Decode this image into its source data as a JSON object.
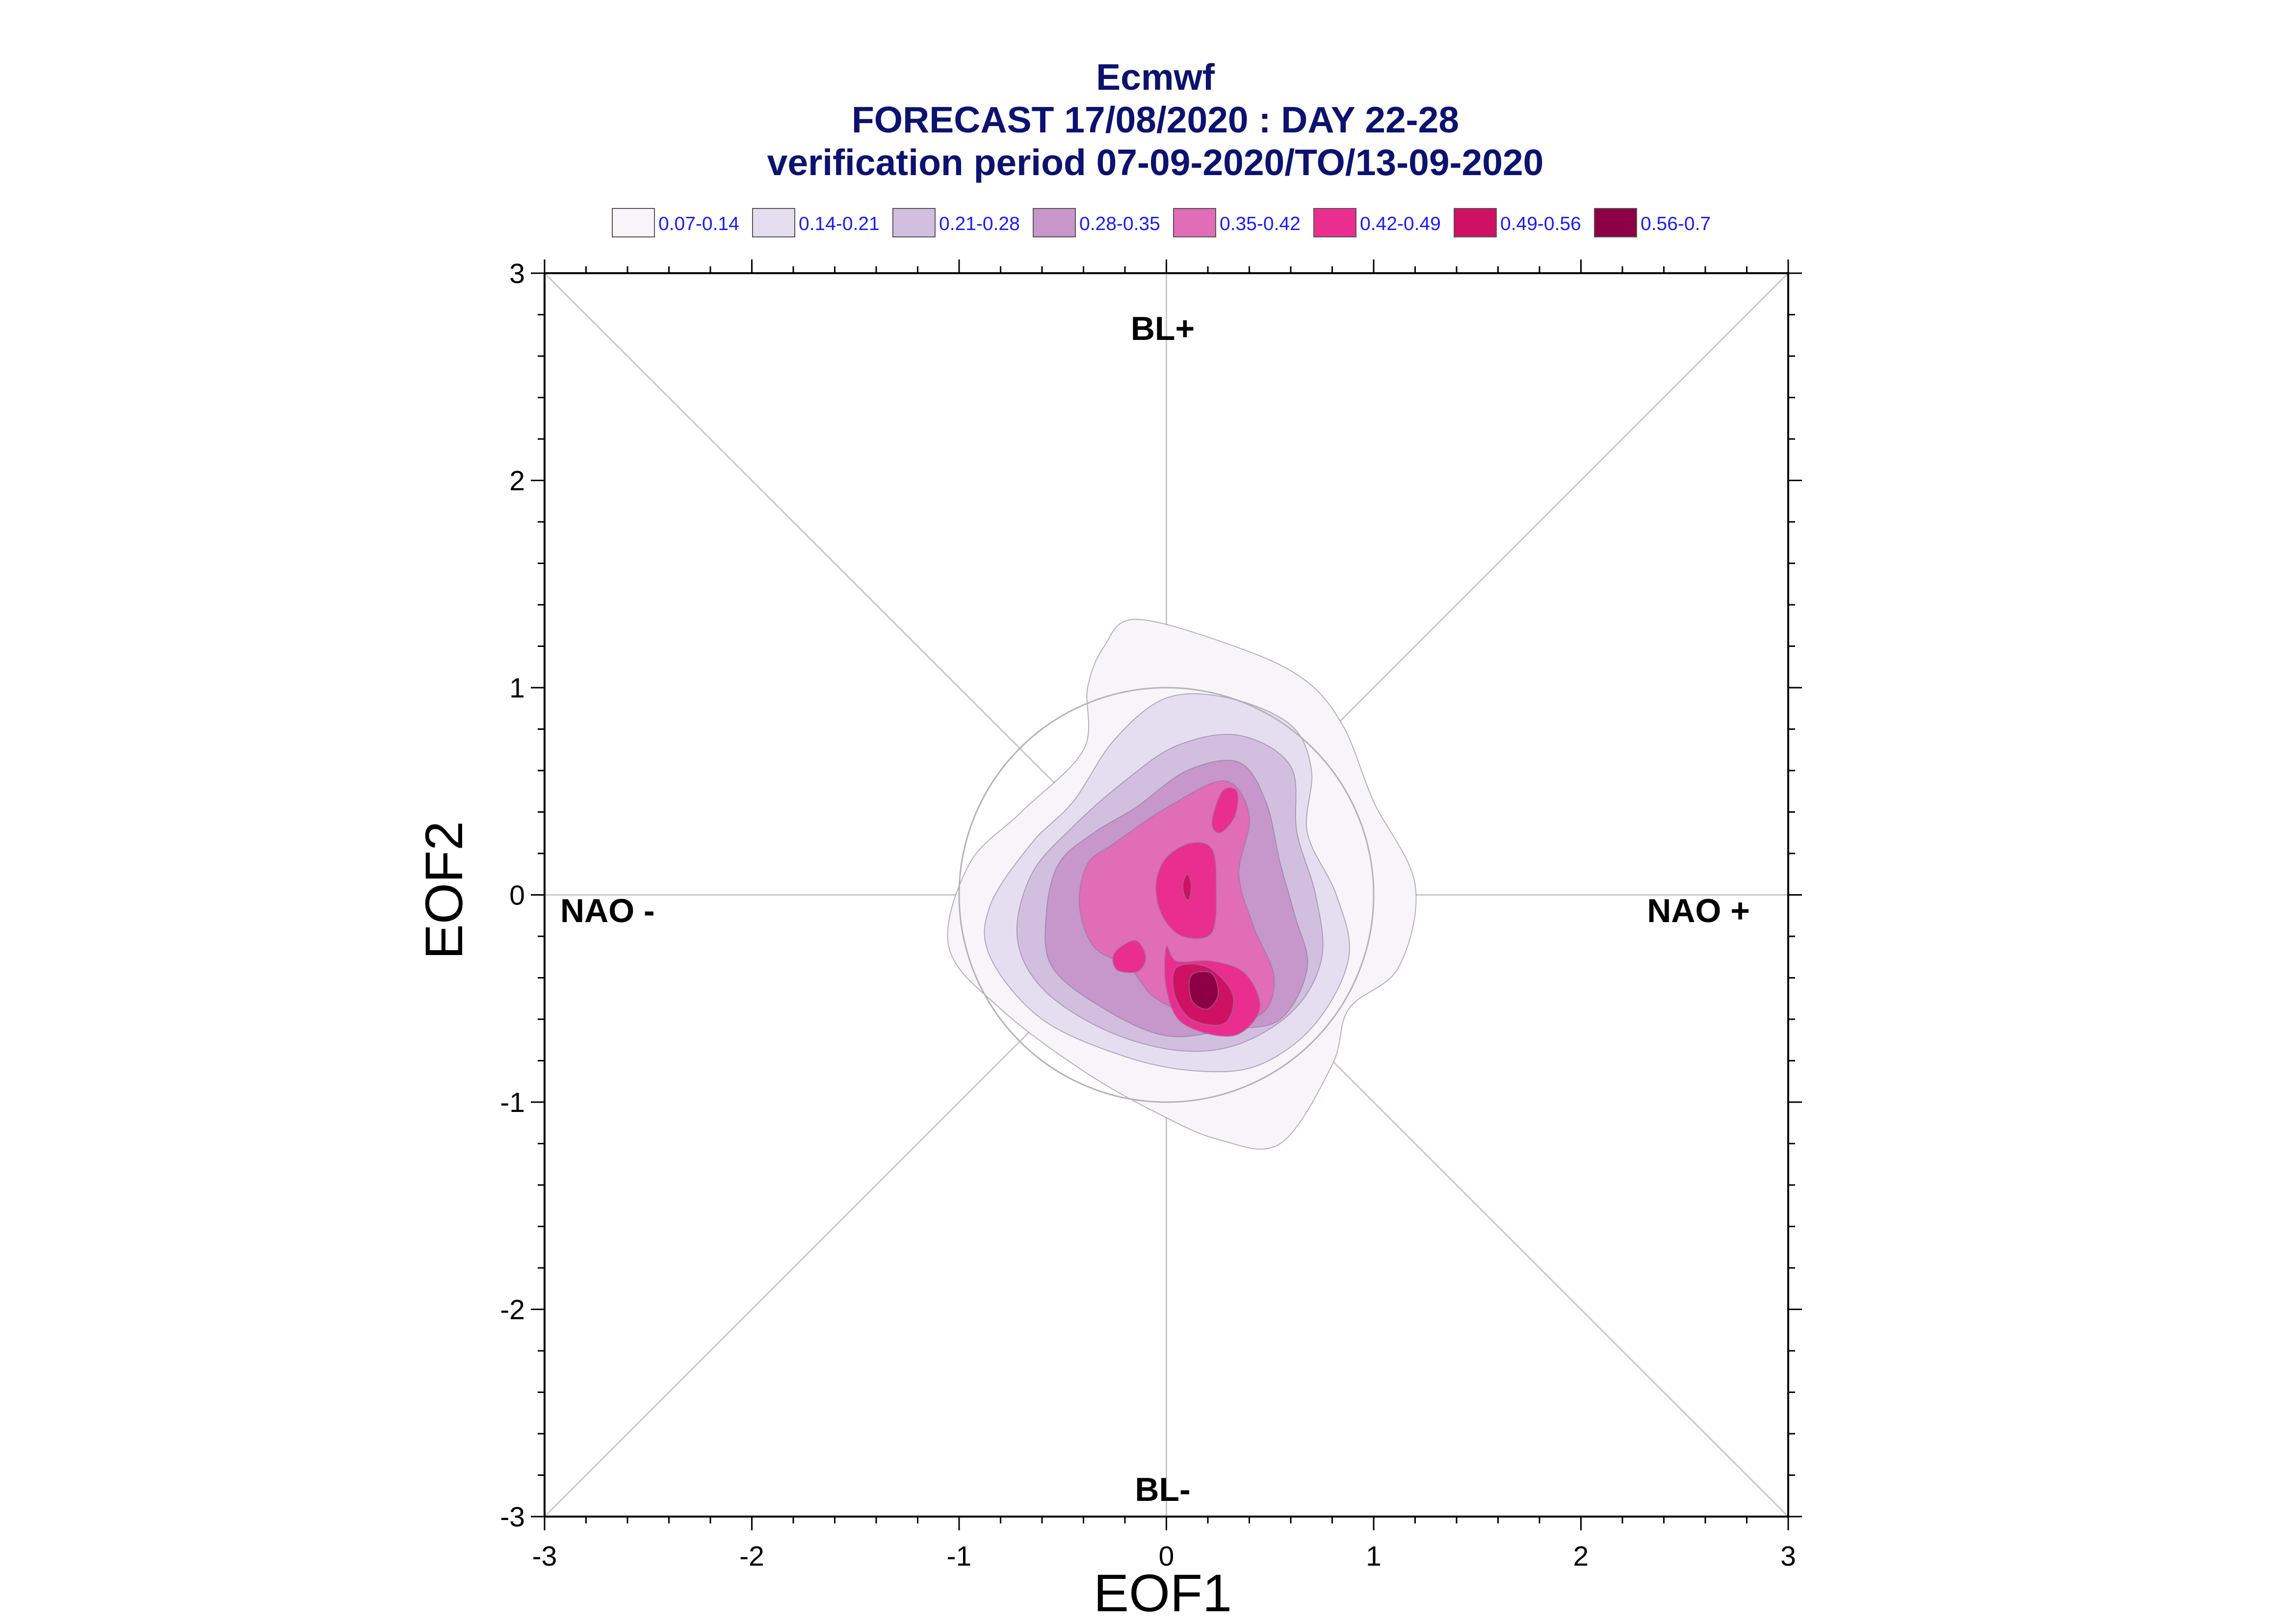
{
  "title_lines": [
    "Ecmwf",
    "FORECAST 17/08/2020 : DAY 22-28",
    "verification period 07-09-2020/TO/13-09-2020"
  ],
  "legend": [
    {
      "label": "0.07-0.14",
      "color": "#f7f5fa"
    },
    {
      "label": "0.14-0.21",
      "color": "#e5def0"
    },
    {
      "label": "0.21-0.28",
      "color": "#d2bfe0"
    },
    {
      "label": "0.28-0.35",
      "color": "#c796cb"
    },
    {
      "label": "0.35-0.42",
      "color": "#e06db6"
    },
    {
      "label": "0.42-0.49",
      "color": "#ea2e8f"
    },
    {
      "label": "0.49-0.56",
      "color": "#cf1163"
    },
    {
      "label": "0.56-0.7",
      "color": "#8e0046"
    }
  ],
  "regions": {
    "top": "BL+",
    "bottom": "BL-",
    "left": "NAO -",
    "right": "NAO +"
  },
  "chart_data": {
    "type": "contour",
    "xlabel": "EOF1",
    "ylabel": "EOF2",
    "xlim": [
      -3,
      3
    ],
    "ylim": [
      -3,
      3
    ],
    "xticks": [
      -3,
      -2,
      -1,
      0,
      1,
      2,
      3
    ],
    "yticks": [
      -3,
      -2,
      -1,
      0,
      1,
      2,
      3
    ],
    "reference_circle_radius": 1,
    "density_peaks": [
      {
        "x": 0.18,
        "y": -0.45,
        "level": "0.56-0.7"
      },
      {
        "x": 0.1,
        "y": 0.05,
        "level": "0.42-0.49"
      },
      {
        "x": 0.25,
        "y": 0.4,
        "level": "0.42-0.49"
      },
      {
        "x": -0.18,
        "y": -0.3,
        "level": "0.42-0.49"
      }
    ],
    "contour_levels": [
      {
        "level": "0.07-0.14",
        "color": "#f7f5fa",
        "path": [
          [
            -0.3,
            1.2
          ],
          [
            -0.15,
            1.33
          ],
          [
            0.3,
            1.21
          ],
          [
            0.65,
            1.05
          ],
          [
            0.85,
            0.82
          ],
          [
            1.0,
            0.45
          ],
          [
            1.2,
            0.05
          ],
          [
            1.12,
            -0.35
          ],
          [
            0.88,
            -0.55
          ],
          [
            0.8,
            -0.82
          ],
          [
            0.55,
            -1.2
          ],
          [
            0.25,
            -1.18
          ],
          [
            -0.05,
            -1.05
          ],
          [
            -0.4,
            -0.85
          ],
          [
            -0.8,
            -0.55
          ],
          [
            -1.05,
            -0.25
          ],
          [
            -0.95,
            0.15
          ],
          [
            -0.7,
            0.4
          ],
          [
            -0.4,
            0.7
          ],
          [
            -0.38,
            1.0
          ]
        ]
      },
      {
        "level": "0.14-0.21",
        "color": "#e5def0",
        "path": [
          [
            -0.25,
            0.75
          ],
          [
            0.0,
            0.95
          ],
          [
            0.3,
            0.95
          ],
          [
            0.6,
            0.82
          ],
          [
            0.7,
            0.6
          ],
          [
            0.68,
            0.3
          ],
          [
            0.82,
            0.0
          ],
          [
            0.88,
            -0.3
          ],
          [
            0.72,
            -0.62
          ],
          [
            0.45,
            -0.82
          ],
          [
            0.15,
            -0.85
          ],
          [
            -0.2,
            -0.78
          ],
          [
            -0.6,
            -0.6
          ],
          [
            -0.85,
            -0.3
          ],
          [
            -0.85,
            -0.05
          ],
          [
            -0.65,
            0.25
          ],
          [
            -0.45,
            0.45
          ]
        ]
      },
      {
        "level": "0.21-0.28",
        "color": "#d2bfe0",
        "path": [
          [
            -0.2,
            0.55
          ],
          [
            0.05,
            0.72
          ],
          [
            0.35,
            0.77
          ],
          [
            0.6,
            0.62
          ],
          [
            0.63,
            0.3
          ],
          [
            0.72,
            0.0
          ],
          [
            0.75,
            -0.3
          ],
          [
            0.62,
            -0.55
          ],
          [
            0.35,
            -0.72
          ],
          [
            0.05,
            -0.75
          ],
          [
            -0.3,
            -0.65
          ],
          [
            -0.6,
            -0.45
          ],
          [
            -0.72,
            -0.2
          ],
          [
            -0.65,
            0.1
          ],
          [
            -0.45,
            0.33
          ]
        ]
      },
      {
        "level": "0.28-0.35",
        "color": "#c796cb",
        "path": [
          [
            -0.15,
            0.42
          ],
          [
            0.1,
            0.6
          ],
          [
            0.35,
            0.64
          ],
          [
            0.48,
            0.45
          ],
          [
            0.55,
            0.15
          ],
          [
            0.62,
            -0.1
          ],
          [
            0.68,
            -0.35
          ],
          [
            0.55,
            -0.6
          ],
          [
            0.3,
            -0.65
          ],
          [
            0.0,
            -0.68
          ],
          [
            -0.3,
            -0.55
          ],
          [
            -0.55,
            -0.35
          ],
          [
            -0.58,
            -0.1
          ],
          [
            -0.52,
            0.15
          ],
          [
            -0.35,
            0.3
          ]
        ]
      },
      {
        "level": "0.35-0.42",
        "color": "#e06db6",
        "path": [
          [
            -0.25,
            0.25
          ],
          [
            0.0,
            0.42
          ],
          [
            0.28,
            0.55
          ],
          [
            0.4,
            0.38
          ],
          [
            0.35,
            0.1
          ],
          [
            0.42,
            -0.15
          ],
          [
            0.52,
            -0.4
          ],
          [
            0.45,
            -0.58
          ],
          [
            0.2,
            -0.6
          ],
          [
            -0.05,
            -0.5
          ],
          [
            -0.18,
            -0.35
          ],
          [
            -0.35,
            -0.25
          ],
          [
            -0.42,
            -0.05
          ],
          [
            -0.38,
            0.15
          ]
        ]
      },
      {
        "level": "0.42-0.49",
        "color": "#ea2e8f",
        "path": [
          [
            0.0,
            -0.25
          ],
          [
            0.05,
            -0.32
          ],
          [
            0.22,
            -0.32
          ],
          [
            0.38,
            -0.38
          ],
          [
            0.45,
            -0.55
          ],
          [
            0.32,
            -0.68
          ],
          [
            0.08,
            -0.62
          ],
          [
            0.0,
            -0.45
          ]
        ]
      },
      {
        "level": "0.42-0.49",
        "color": "#ea2e8f",
        "path": [
          [
            -0.05,
            0.05
          ],
          [
            0.0,
            0.18
          ],
          [
            0.12,
            0.25
          ],
          [
            0.22,
            0.22
          ],
          [
            0.24,
            0.05
          ],
          [
            0.22,
            -0.18
          ],
          [
            0.08,
            -0.2
          ],
          [
            -0.02,
            -0.1
          ]
        ]
      },
      {
        "level": "0.42-0.49",
        "color": "#ea2e8f",
        "path": [
          [
            0.22,
            0.35
          ],
          [
            0.27,
            0.5
          ],
          [
            0.34,
            0.5
          ],
          [
            0.33,
            0.38
          ],
          [
            0.26,
            0.3
          ]
        ]
      },
      {
        "level": "0.42-0.49",
        "color": "#ea2e8f",
        "path": [
          [
            -0.25,
            -0.28
          ],
          [
            -0.15,
            -0.22
          ],
          [
            -0.1,
            -0.3
          ],
          [
            -0.14,
            -0.37
          ],
          [
            -0.24,
            -0.36
          ]
        ]
      },
      {
        "level": "0.49-0.56",
        "color": "#cf1163",
        "path": [
          [
            0.05,
            -0.35
          ],
          [
            0.2,
            -0.35
          ],
          [
            0.32,
            -0.48
          ],
          [
            0.28,
            -0.62
          ],
          [
            0.12,
            -0.6
          ],
          [
            0.04,
            -0.48
          ]
        ]
      },
      {
        "level": "0.49-0.56",
        "color": "#cf1163",
        "path": [
          [
            0.08,
            0.05
          ],
          [
            0.1,
            0.1
          ],
          [
            0.12,
            0.05
          ],
          [
            0.11,
            -0.02
          ],
          [
            0.09,
            -0.01
          ]
        ]
      },
      {
        "level": "0.56-0.7",
        "color": "#8e0046",
        "path": [
          [
            0.13,
            -0.38
          ],
          [
            0.22,
            -0.38
          ],
          [
            0.25,
            -0.48
          ],
          [
            0.2,
            -0.55
          ],
          [
            0.13,
            -0.52
          ],
          [
            0.11,
            -0.44
          ]
        ]
      }
    ]
  }
}
